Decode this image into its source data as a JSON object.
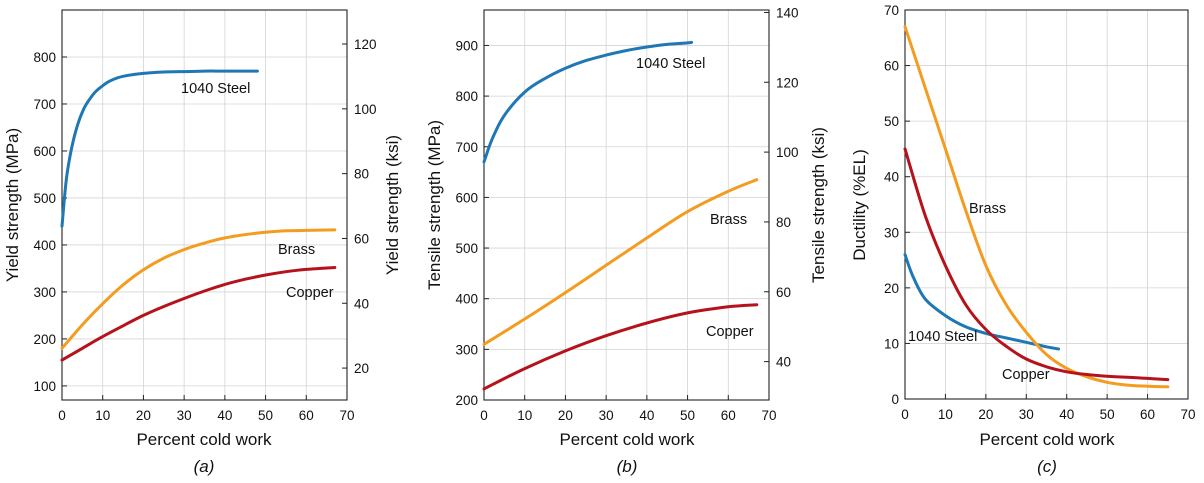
{
  "colors": {
    "steel": "#1f77b4",
    "brass": "#f39c1f",
    "copper": "#b5121b"
  },
  "chart_data": [
    {
      "type": "line",
      "caption": "(a)",
      "xlabel": "Percent cold work",
      "ylabel": "Yield strength (MPa)",
      "ylabel_right": "Yield strength (ksi)",
      "xlim": [
        0,
        70
      ],
      "ylim": [
        70,
        900
      ],
      "ylim_right": [
        10.15,
        130.5
      ],
      "xticks": [
        0,
        10,
        20,
        30,
        40,
        50,
        60,
        70
      ],
      "yticks": [
        100,
        200,
        300,
        400,
        500,
        600,
        700,
        800
      ],
      "yticks_right": [
        20,
        40,
        60,
        80,
        100,
        120
      ],
      "grid": true,
      "series": [
        {
          "name": "1040 Steel",
          "color_key": "steel",
          "x": [
            0,
            1,
            2,
            3,
            4,
            5,
            6,
            8,
            10,
            12,
            15,
            20,
            25,
            30,
            35,
            40,
            48
          ],
          "y": [
            440,
            535,
            590,
            630,
            660,
            683,
            700,
            724,
            739,
            750,
            759,
            765,
            768,
            769,
            770,
            770,
            770
          ]
        },
        {
          "name": "Brass",
          "color_key": "brass",
          "x": [
            0,
            5,
            10,
            15,
            20,
            25,
            30,
            35,
            40,
            45,
            50,
            55,
            60,
            67
          ],
          "y": [
            180,
            230,
            275,
            315,
            347,
            372,
            390,
            404,
            415,
            422,
            427,
            430,
            431,
            432
          ]
        },
        {
          "name": "Copper",
          "color_key": "copper",
          "x": [
            0,
            5,
            10,
            15,
            20,
            25,
            30,
            35,
            40,
            45,
            50,
            55,
            60,
            67
          ],
          "y": [
            155,
            180,
            205,
            228,
            250,
            269,
            286,
            302,
            316,
            327,
            336,
            343,
            348,
            352
          ]
        }
      ]
    },
    {
      "type": "line",
      "caption": "(b)",
      "xlabel": "Percent cold work",
      "ylabel": "Tensile strength (MPa)",
      "ylabel_right": "Tensile strength (ksi)",
      "xlim": [
        0,
        70
      ],
      "ylim": [
        200,
        970
      ],
      "ylim_right": [
        29,
        140.7
      ],
      "xticks": [
        0,
        10,
        20,
        30,
        40,
        50,
        60,
        70
      ],
      "yticks": [
        200,
        300,
        400,
        500,
        600,
        700,
        800,
        900
      ],
      "yticks_right": [
        40,
        60,
        80,
        100,
        120,
        140
      ],
      "grid": true,
      "series": [
        {
          "name": "1040 Steel",
          "color_key": "steel",
          "x": [
            0,
            2,
            5,
            10,
            15,
            20,
            25,
            30,
            35,
            40,
            45,
            50,
            51
          ],
          "y": [
            670,
            715,
            762,
            808,
            835,
            855,
            870,
            881,
            890,
            897,
            902,
            905,
            906
          ]
        },
        {
          "name": "Brass",
          "color_key": "brass",
          "x": [
            0,
            10,
            20,
            30,
            40,
            50,
            60,
            67
          ],
          "y": [
            310,
            360,
            412,
            466,
            520,
            572,
            612,
            635
          ]
        },
        {
          "name": "Copper",
          "color_key": "copper",
          "x": [
            0,
            10,
            20,
            30,
            40,
            50,
            60,
            67
          ],
          "y": [
            222,
            262,
            297,
            327,
            352,
            372,
            384,
            388
          ]
        }
      ]
    },
    {
      "type": "line",
      "caption": "(c)",
      "xlabel": "Percent cold work",
      "ylabel": "Ductility (%EL)",
      "xlim": [
        0,
        70
      ],
      "ylim": [
        0,
        70
      ],
      "xticks": [
        0,
        10,
        20,
        30,
        40,
        50,
        60,
        70
      ],
      "yticks": [
        0,
        10,
        20,
        30,
        40,
        50,
        60,
        70
      ],
      "grid": true,
      "series": [
        {
          "name": "1040 Steel",
          "color_key": "steel",
          "x": [
            0,
            2,
            5,
            10,
            15,
            20,
            25,
            30,
            35,
            38
          ],
          "y": [
            26,
            22,
            18,
            15,
            13,
            11.8,
            11,
            10.2,
            9.4,
            9
          ]
        },
        {
          "name": "Brass",
          "color_key": "brass",
          "x": [
            0,
            5,
            10,
            15,
            20,
            25,
            30,
            35,
            40,
            45,
            50,
            55,
            60,
            65
          ],
          "y": [
            67,
            56,
            45,
            34,
            24,
            17,
            12,
            8,
            5.5,
            4,
            3,
            2.5,
            2.3,
            2.2
          ]
        },
        {
          "name": "Copper",
          "color_key": "copper",
          "x": [
            0,
            5,
            10,
            15,
            20,
            25,
            30,
            35,
            40,
            45,
            50,
            55,
            60,
            65
          ],
          "y": [
            45,
            33,
            24,
            17,
            12.5,
            9.5,
            7.2,
            5.8,
            4.9,
            4.4,
            4.1,
            3.9,
            3.7,
            3.5
          ]
        }
      ]
    }
  ]
}
